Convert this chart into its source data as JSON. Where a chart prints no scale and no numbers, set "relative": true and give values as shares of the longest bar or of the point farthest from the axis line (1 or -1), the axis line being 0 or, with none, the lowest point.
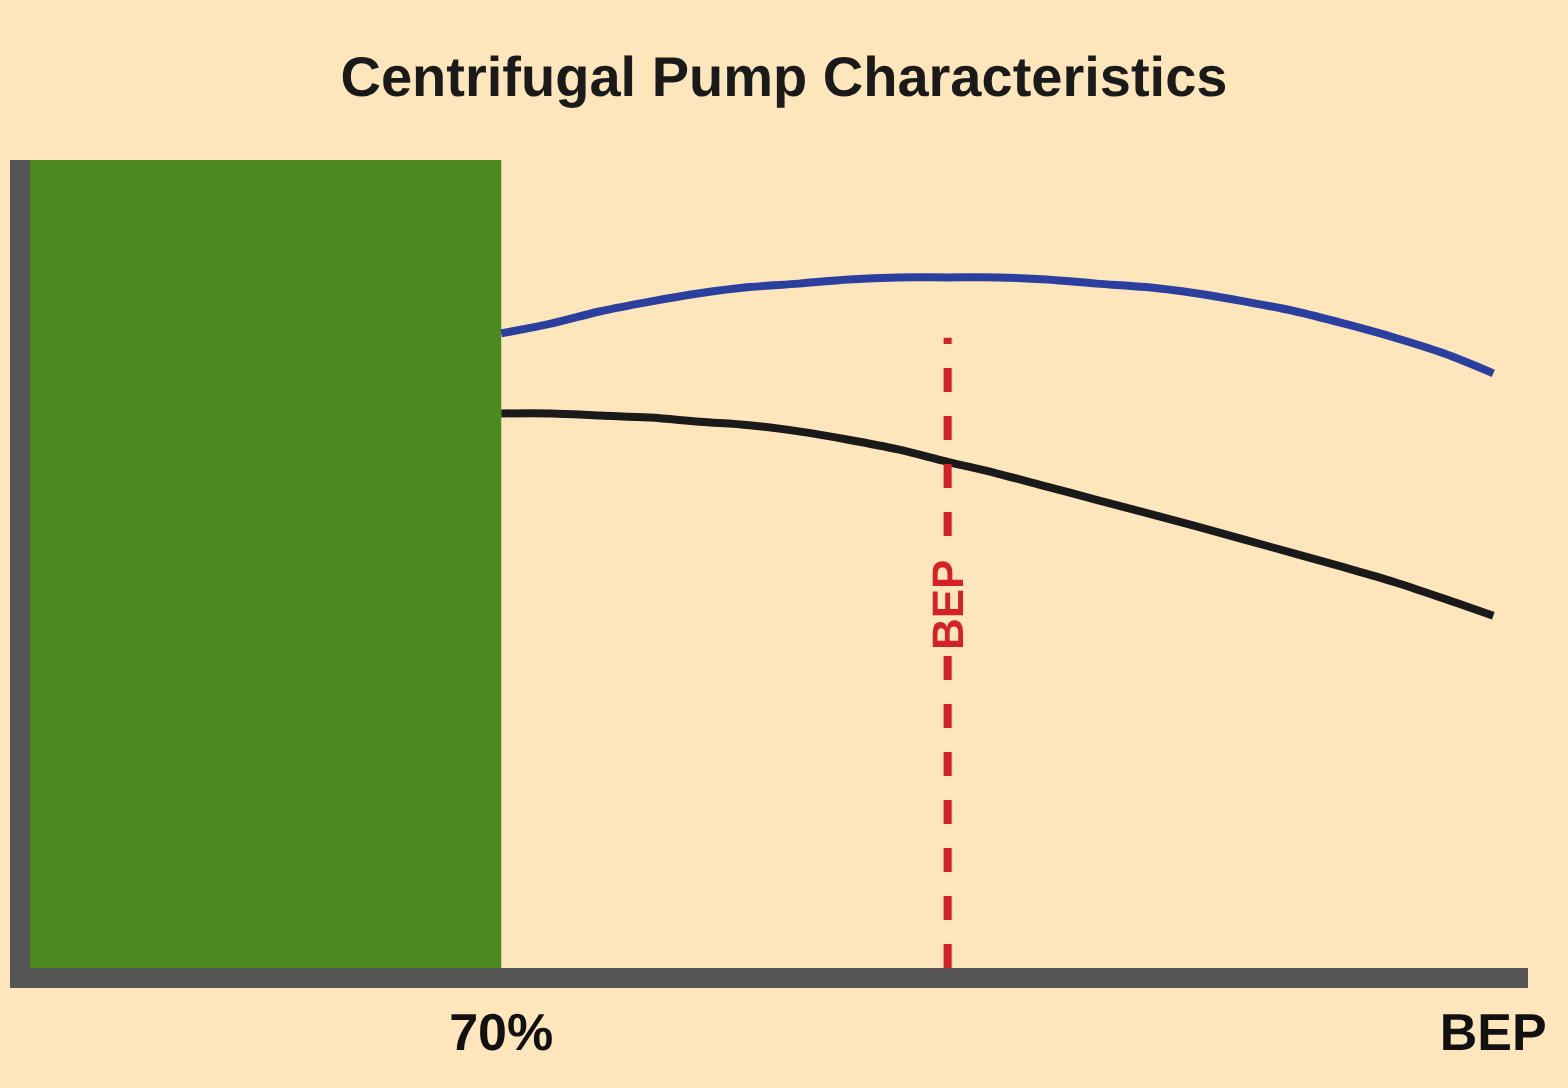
{
  "chart_data": {
    "type": "line",
    "title": "Centrifugal Pump Characteristics",
    "relative": true,
    "categories": [
      null,
      null,
      null,
      null,
      null,
      null,
      null,
      null,
      null,
      "70%",
      null,
      null,
      null,
      null,
      null,
      null,
      null,
      null,
      null,
      null,
      null,
      null,
      null,
      null,
      null,
      null,
      null,
      null,
      null,
      "BEP"
    ],
    "series": [
      {
        "color": "#2b3f9e",
        "values": [
          null,
          null,
          null,
          null,
          null,
          null,
          null,
          null,
          null,
          0.919,
          0.933,
          0.951,
          0.965,
          0.977,
          0.986,
          0.991,
          0.997,
          1,
          1,
          1,
          0.997,
          0.991,
          0.986,
          0.977,
          0.965,
          0.951,
          0.933,
          0.913,
          0.89,
          0.861
        ]
      },
      {
        "color": "#1a1a1a",
        "values": [
          null,
          null,
          null,
          null,
          null,
          null,
          null,
          null,
          null,
          0.803,
          0.803,
          0.8,
          0.797,
          0.791,
          0.786,
          0.777,
          0.765,
          0.751,
          0.733,
          0.716,
          0.697,
          0.678,
          0.659,
          0.64,
          0.62,
          0.6,
          0.58,
          0.559,
          0.535,
          0.51
        ]
      }
    ],
    "annotations": [
      "BEP"
    ],
    "grid": false,
    "marker": "none",
    "line_style": "solid",
    "tick_labels": "x"
  }
}
